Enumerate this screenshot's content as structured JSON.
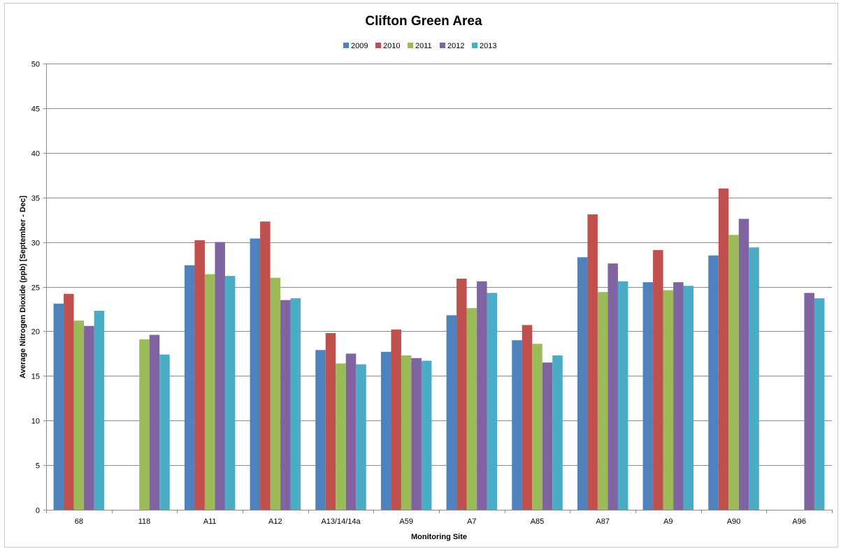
{
  "chart_data": {
    "type": "bar",
    "title": "Clifton Green Area",
    "xlabel": "Monitoring Site",
    "ylabel": "Average Nitrogen Dioxide (ppb) [September - Dec]",
    "ylim": [
      0,
      50
    ],
    "yticks": [
      0,
      5,
      10,
      15,
      20,
      25,
      30,
      35,
      40,
      45,
      50
    ],
    "grid": true,
    "legend_position": "top",
    "categories": [
      "68",
      "118",
      "A11",
      "A12",
      "A13/14/14a",
      "A59",
      "A7",
      "A85",
      "A87",
      "A9",
      "A90",
      "A96"
    ],
    "series": [
      {
        "name": "2009",
        "color": "#4f81bd",
        "values": [
          23.1,
          null,
          27.4,
          30.4,
          17.9,
          17.7,
          21.8,
          19.0,
          28.3,
          25.5,
          28.5,
          null
        ]
      },
      {
        "name": "2010",
        "color": "#c0504d",
        "values": [
          24.2,
          null,
          30.2,
          32.3,
          19.8,
          20.2,
          25.9,
          20.7,
          33.1,
          29.1,
          36.0,
          null
        ]
      },
      {
        "name": "2011",
        "color": "#9bbb59",
        "values": [
          21.2,
          19.1,
          26.4,
          26.0,
          16.4,
          17.3,
          22.6,
          18.6,
          24.4,
          24.6,
          30.8,
          null
        ]
      },
      {
        "name": "2012",
        "color": "#8064a2",
        "values": [
          20.6,
          19.6,
          30.0,
          23.5,
          17.5,
          17.0,
          25.6,
          16.5,
          27.6,
          25.5,
          32.6,
          24.3
        ]
      },
      {
        "name": "2013",
        "color": "#4bacc6",
        "values": [
          22.3,
          17.4,
          26.2,
          23.7,
          16.3,
          16.7,
          24.3,
          17.3,
          25.6,
          25.1,
          29.4,
          23.7
        ]
      }
    ]
  }
}
